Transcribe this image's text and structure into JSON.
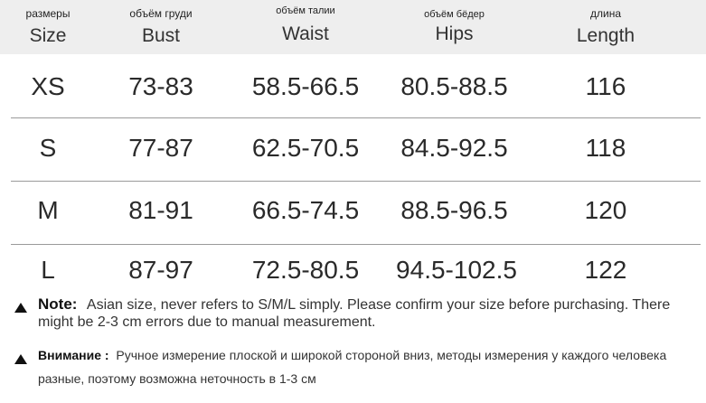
{
  "columns": [
    {
      "ru": "размеры",
      "en": "Size"
    },
    {
      "ru": "объём груди",
      "en": "Bust"
    },
    {
      "ru": "объём талии",
      "en": "Waist"
    },
    {
      "ru": "объём бёдер",
      "en": "Hips"
    },
    {
      "ru": "длина",
      "en": "Length"
    }
  ],
  "rows": [
    [
      "XS",
      "73-83",
      "58.5-66.5",
      "80.5-88.5",
      "116"
    ],
    [
      "S",
      "77-87",
      "62.5-70.5",
      "84.5-92.5",
      "118"
    ],
    [
      "M",
      "81-91",
      "66.5-74.5",
      "88.5-96.5",
      "120"
    ],
    [
      "L",
      "87-97",
      "72.5-80.5",
      "94.5-102.5",
      "122"
    ]
  ],
  "notes": {
    "en_label": "Note:",
    "en_text": "Asian size, never refers to S/M/L simply. Please confirm your size before purchasing. There might be 2-3 cm errors due to manual measurement.",
    "ru_label": "Внимание :",
    "ru_text": "Ручное измерение плоской и широкой стороной вниз, методы измерения у каждого человека разные, поэтому возможна неточность в 1-3 см"
  }
}
